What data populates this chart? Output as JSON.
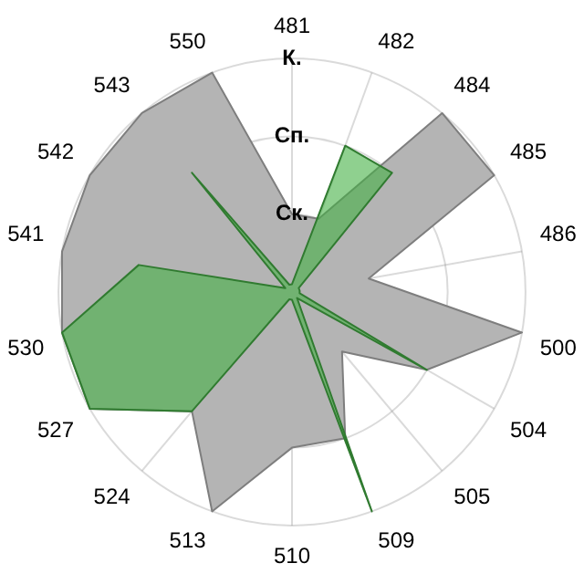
{
  "chart_data": {
    "type": "radar",
    "categories": [
      "481",
      "482",
      "484",
      "485",
      "486",
      "500",
      "504",
      "505",
      "509",
      "510",
      "513",
      "524",
      "527",
      "530",
      "541",
      "542",
      "543",
      "550"
    ],
    "series": [
      {
        "color": "#b4b4b4",
        "values": [
          1,
          1,
          3,
          3,
          1,
          3,
          2,
          1,
          2,
          2,
          3,
          2,
          3,
          3,
          3,
          3,
          3,
          3
        ]
      },
      {
        "color": "#44b044",
        "values": [
          0.1,
          2,
          2,
          0.1,
          0.1,
          0.1,
          2,
          0.1,
          3,
          0.1,
          0.1,
          2,
          3,
          3,
          2,
          0.1,
          2,
          0.1
        ]
      }
    ],
    "ylim": [
      0,
      3
    ],
    "yticks": [
      {
        "value": 1,
        "label": "Ск."
      },
      {
        "value": 2,
        "label": "Сп."
      },
      {
        "value": 3,
        "label": "К."
      }
    ],
    "grid": true,
    "legend": false,
    "marker": "none"
  }
}
